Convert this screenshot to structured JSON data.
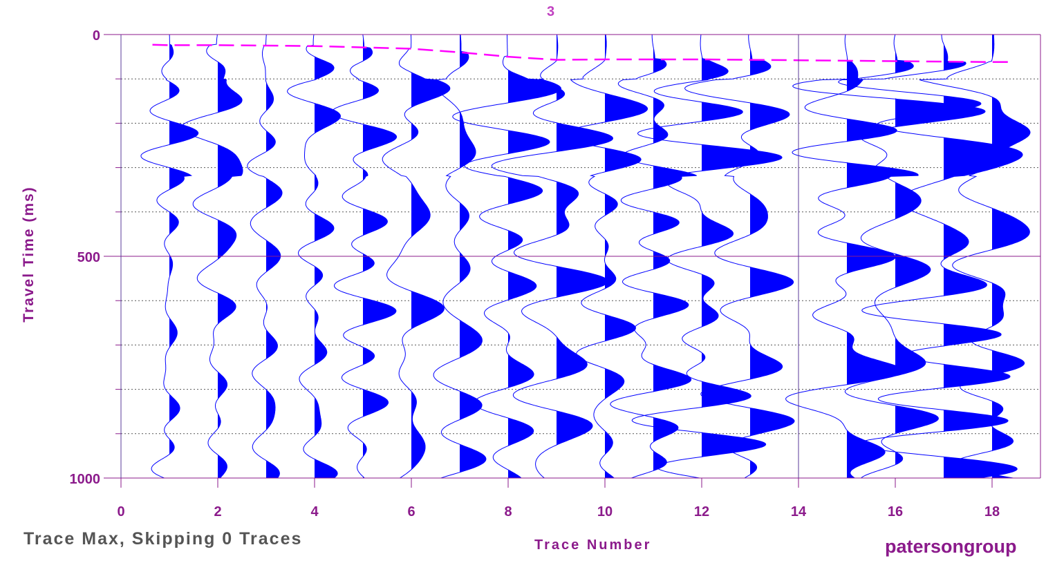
{
  "chart_data": {
    "type": "seismic-wiggle",
    "title": "3",
    "xlabel": "Trace Number",
    "ylabel": "Travel Time (ms)",
    "xlim": [
      0,
      19
    ],
    "ylim": [
      0,
      1000
    ],
    "y_reversed": true,
    "x_ticks": [
      0,
      2,
      4,
      6,
      8,
      10,
      12,
      14,
      16,
      18
    ],
    "y_ticks": [
      0,
      500,
      1000
    ],
    "y_minor_ticks": [
      100,
      200,
      300,
      400,
      600,
      700,
      800,
      900
    ],
    "grid": true,
    "traces": [
      1,
      2,
      3,
      4,
      5,
      6,
      7,
      8,
      9,
      10,
      11,
      12,
      13,
      15,
      16,
      17,
      18
    ],
    "first_break_picks": {
      "x": [
        0.65,
        1,
        2,
        3,
        4,
        5,
        6,
        7,
        8,
        9,
        10,
        11,
        12,
        13,
        14,
        15,
        16,
        17,
        18,
        18.4
      ],
      "y": [
        23,
        24,
        24,
        25,
        26,
        29,
        32,
        40,
        50,
        57,
        56,
        56,
        56,
        57,
        58,
        59,
        60,
        61,
        62,
        62
      ]
    },
    "colors": {
      "fill": "#0000ff",
      "wiggle": "#0000ff",
      "axes": "#8b1a8b",
      "grid": "#555555",
      "picks": "#ff00ff"
    }
  },
  "footer_note": "Trace Max, Skipping 0 Traces",
  "brand": "patersongroup"
}
